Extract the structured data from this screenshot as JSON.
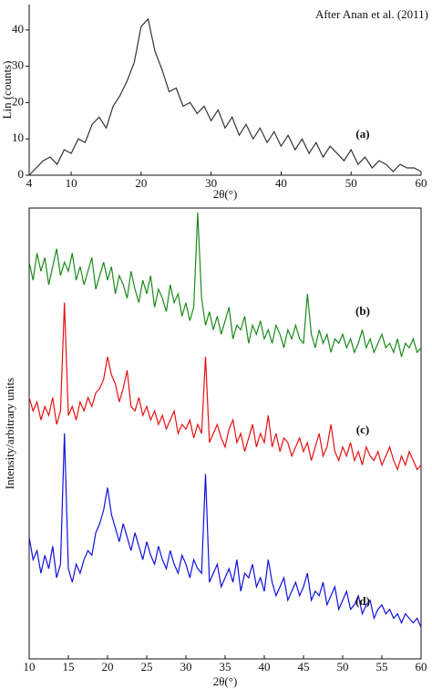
{
  "chart_data": [
    {
      "type": "line",
      "frame": "left-bottom",
      "x_label": "2θ(°)",
      "y_label": "Lin (counts)",
      "annotation": "After Anan et al. (2011)",
      "xlim": [
        4,
        60
      ],
      "ylim": [
        0,
        47
      ],
      "xticks": [
        4,
        10,
        20,
        30,
        40,
        50,
        60
      ],
      "yticks": [
        0,
        10,
        20,
        30,
        40
      ],
      "x": [
        4,
        5,
        6,
        7,
        8,
        9,
        10,
        11,
        12,
        13,
        14,
        15,
        16,
        17,
        18,
        19,
        20,
        21,
        22,
        23,
        24,
        25,
        26,
        27,
        28,
        29,
        30,
        31,
        32,
        33,
        34,
        35,
        36,
        37,
        38,
        39,
        40,
        41,
        42,
        43,
        44,
        45,
        46,
        47,
        48,
        49,
        50,
        51,
        52,
        53,
        54,
        55,
        56,
        57,
        58,
        59,
        60
      ],
      "series": [
        {
          "name": "(a)",
          "color": "#333333",
          "values": [
            0,
            2,
            4,
            5,
            3,
            7,
            6,
            10,
            9,
            14,
            16,
            13,
            19,
            22,
            26,
            31,
            41,
            43,
            34,
            29,
            23,
            24,
            19,
            20,
            17,
            19,
            15,
            18,
            13,
            16,
            11,
            14,
            10,
            13,
            9,
            12,
            8,
            11,
            7,
            10,
            6,
            9,
            5,
            8,
            6,
            4,
            7,
            3,
            5,
            2,
            4,
            3,
            1,
            3,
            2,
            2,
            1
          ]
        }
      ]
    },
    {
      "type": "line",
      "frame": "box",
      "x_label": "2θ(°)",
      "y_label": "Intensity/arbitrary units",
      "xlim": [
        10,
        60
      ],
      "ylim": [
        0,
        100
      ],
      "xticks": [
        10,
        15,
        20,
        25,
        30,
        35,
        40,
        45,
        50,
        55,
        60
      ],
      "x": [
        10,
        10.5,
        11,
        11.5,
        12,
        12.5,
        13,
        13.5,
        14,
        14.5,
        15,
        15.5,
        16,
        16.5,
        17,
        17.5,
        18,
        18.5,
        19,
        19.5,
        20,
        20.5,
        21,
        21.5,
        22,
        22.5,
        23,
        23.5,
        24,
        24.5,
        25,
        25.5,
        26,
        26.5,
        27,
        27.5,
        28,
        28.5,
        29,
        29.5,
        30,
        30.5,
        31,
        31.5,
        32,
        32.5,
        33,
        33.5,
        34,
        34.5,
        35,
        35.5,
        36,
        36.5,
        37,
        37.5,
        38,
        38.5,
        39,
        39.5,
        40,
        40.5,
        41,
        41.5,
        42,
        42.5,
        43,
        43.5,
        44,
        44.5,
        45,
        45.5,
        46,
        46.5,
        47,
        47.5,
        48,
        48.5,
        49,
        49.5,
        50,
        50.5,
        51,
        51.5,
        52,
        52.5,
        53,
        53.5,
        54,
        54.5,
        55,
        55.5,
        56,
        56.5,
        57,
        57.5,
        58,
        58.5,
        59,
        59.5,
        60
      ],
      "series": [
        {
          "name": "(b)",
          "color": "#1a8a1a",
          "values": [
            88,
            84,
            90,
            86,
            89,
            83,
            87,
            91,
            85,
            88,
            86,
            90,
            84,
            87,
            83,
            86,
            89,
            82,
            85,
            88,
            84,
            87,
            81,
            85,
            83,
            80,
            86,
            82,
            79,
            84,
            81,
            85,
            78,
            82,
            80,
            77,
            83,
            79,
            81,
            76,
            79,
            75,
            78,
            99,
            80,
            74,
            77,
            73,
            76,
            72,
            75,
            78,
            71,
            74,
            73,
            76,
            70,
            74,
            72,
            75,
            71,
            73,
            70,
            74,
            72,
            69,
            73,
            71,
            74,
            71,
            70,
            81,
            72,
            69,
            73,
            70,
            72,
            68,
            71,
            70,
            72,
            69,
            71,
            68,
            70,
            73,
            69,
            71,
            68,
            70,
            72,
            69,
            70,
            68,
            71,
            67,
            70,
            69,
            71,
            68,
            69
          ]
        },
        {
          "name": "(c)",
          "color": "#e81010",
          "values": [
            58,
            55,
            57,
            53,
            56,
            54,
            58,
            52,
            55,
            79,
            54,
            56,
            53,
            57,
            55,
            58,
            56,
            59,
            60,
            62,
            67,
            63,
            61,
            57,
            60,
            64,
            56,
            55,
            58,
            54,
            56,
            53,
            55,
            52,
            54,
            51,
            53,
            55,
            50,
            52,
            51,
            53,
            49,
            52,
            50,
            67,
            48,
            50,
            52,
            49,
            47,
            51,
            53,
            48,
            50,
            46,
            49,
            52,
            47,
            50,
            48,
            54,
            47,
            50,
            46,
            49,
            48,
            45,
            47,
            49,
            46,
            48,
            44,
            47,
            50,
            45,
            47,
            52,
            46,
            44,
            47,
            45,
            48,
            44,
            46,
            43,
            47,
            45,
            44,
            46,
            43,
            45,
            47,
            44,
            42,
            45,
            43,
            46,
            44,
            42,
            43
          ]
        },
        {
          "name": "(d)",
          "color": "#1010e0",
          "values": [
            27,
            22,
            24,
            19,
            23,
            20,
            25,
            18,
            21,
            50,
            20,
            17,
            21,
            19,
            22,
            24,
            23,
            28,
            30,
            33,
            38,
            32,
            29,
            26,
            30,
            27,
            24,
            28,
            25,
            22,
            26,
            23,
            21,
            25,
            22,
            20,
            24,
            21,
            19,
            23,
            21,
            18,
            22,
            20,
            19,
            41,
            17,
            19,
            21,
            16,
            18,
            20,
            17,
            22,
            15,
            19,
            18,
            21,
            16,
            18,
            15,
            22,
            17,
            14,
            16,
            18,
            13,
            15,
            17,
            14,
            16,
            19,
            13,
            15,
            14,
            17,
            12,
            14,
            16,
            11,
            13,
            15,
            11,
            12,
            14,
            10,
            12,
            13,
            9,
            11,
            12,
            10,
            11,
            9,
            10,
            8,
            10,
            9,
            8,
            9,
            7
          ]
        }
      ]
    }
  ]
}
